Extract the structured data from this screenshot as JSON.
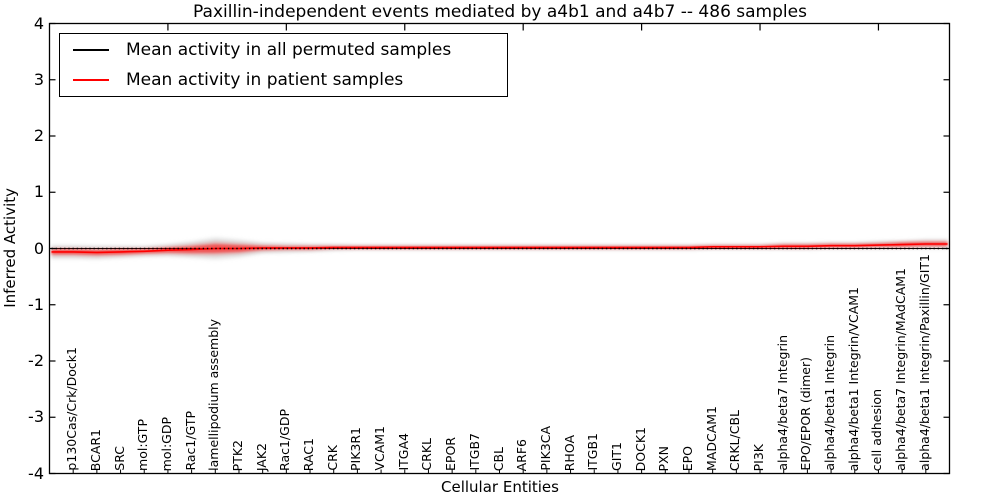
{
  "chart_data": {
    "type": "line",
    "title": "Paxillin-independent events mediated by a4b1 and a4b7 -- 486 samples",
    "xlabel": "Cellular Entities",
    "ylabel": "Inferred Activity",
    "ylim": [
      -4,
      4
    ],
    "yticks": [
      4,
      3,
      2,
      1,
      0,
      -1,
      -2,
      -3,
      -4
    ],
    "grid": false,
    "legend_position": "upper left",
    "categories": [
      "p130Cas/Crk/Dock1",
      "BCAR1",
      "SRC",
      "mol:GTP",
      "mol:GDP",
      "Rac1/GTP",
      "lamellipodium assembly",
      "PTK2",
      "JAK2",
      "Rac1/GDP",
      "RAC1",
      "CRK",
      "PIK3R1",
      "VCAM1",
      "ITGA4",
      "CRKL",
      "EPOR",
      "ITGB7",
      "CBL",
      "ARF6",
      "PIK3CA",
      "RHOA",
      "ITGB1",
      "GIT1",
      "DOCK1",
      "PXN",
      "EPO",
      "MADCAM1",
      "CRKL/CBL",
      "PI3K",
      "alpha4/beta7 Integrin",
      "EPO/EPOR (dimer)",
      "alpha4/beta1 Integrin",
      "alpha4/beta1 Integrin/VCAM1",
      "cell adhesion",
      "alpha4/beta7 Integrin/MAdCAM1",
      "alpha4/beta1 Integrin/Paxillin/GIT1"
    ],
    "series": [
      {
        "name": "Mean activity in all permuted samples",
        "color": "#000000",
        "line_style": "dotted-at-zero",
        "values": [
          0,
          0,
          0,
          0,
          0,
          0,
          0,
          0,
          0,
          0,
          0,
          0,
          0,
          0,
          0,
          0,
          0,
          0,
          0,
          0,
          0,
          0,
          0,
          0,
          0,
          0,
          0,
          0,
          0,
          0,
          0,
          0,
          0,
          0,
          0,
          0,
          0
        ]
      },
      {
        "name": "Mean activity in patient samples",
        "color": "#ff0000",
        "line_style": "solid",
        "values": [
          -0.06,
          -0.07,
          -0.06,
          -0.05,
          -0.03,
          -0.02,
          0,
          0,
          0.01,
          0.01,
          0.01,
          0.02,
          0.02,
          0.02,
          0.02,
          0.02,
          0.02,
          0.02,
          0.02,
          0.02,
          0.02,
          0.02,
          0.02,
          0.02,
          0.02,
          0.02,
          0.02,
          0.03,
          0.03,
          0.03,
          0.04,
          0.04,
          0.05,
          0.05,
          0.06,
          0.07,
          0.08
        ]
      }
    ],
    "bands": {
      "permuted_spread_halfwidth": [
        0.1,
        0.1,
        0.09,
        0.08,
        0.09,
        0.12,
        0.16,
        0.13,
        0.08,
        0.07,
        0.06,
        0.05,
        0.04,
        0.04,
        0.04,
        0.04,
        0.04,
        0.04,
        0.04,
        0.04,
        0.04,
        0.04,
        0.04,
        0.04,
        0.04,
        0.04,
        0.04,
        0.04,
        0.04,
        0.04,
        0.05,
        0.05,
        0.05,
        0.05,
        0.06,
        0.06,
        0.07
      ],
      "patient_spread_halfwidth": [
        0.05,
        0.05,
        0.05,
        0.04,
        0.05,
        0.07,
        0.09,
        0.07,
        0.04,
        0.03,
        0.03,
        0.02,
        0.02,
        0.02,
        0.02,
        0.02,
        0.02,
        0.02,
        0.02,
        0.02,
        0.02,
        0.02,
        0.02,
        0.02,
        0.02,
        0.02,
        0.02,
        0.02,
        0.02,
        0.02,
        0.03,
        0.03,
        0.03,
        0.03,
        0.03,
        0.04,
        0.04
      ],
      "band_gray": "#c8c8c8"
    }
  },
  "legend": {
    "items": [
      {
        "label": "Mean activity in all permuted samples",
        "color": "#000000"
      },
      {
        "label": "Mean activity in patient samples",
        "color": "#ff0000"
      }
    ]
  }
}
